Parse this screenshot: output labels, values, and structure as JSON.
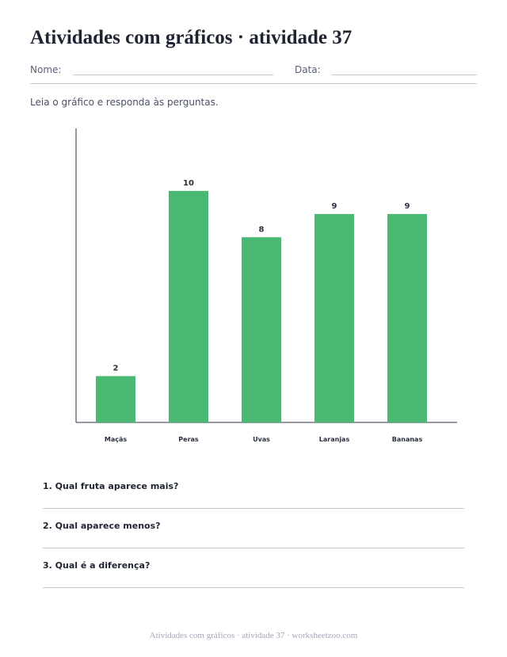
{
  "header": {
    "title": "Atividades com gráficos · atividade 37",
    "name_label": "Nome:",
    "date_label": "Data:"
  },
  "instructions": "Leia o gráfico e responda às perguntas.",
  "chart_data": {
    "type": "bar",
    "categories": [
      "Maçãs",
      "Peras",
      "Uvas",
      "Laranjas",
      "Bananas"
    ],
    "values": [
      2,
      10,
      8,
      9,
      9
    ],
    "ylim": [
      0,
      12.7
    ],
    "grid": false,
    "data_labels": true,
    "bar_color": "#49b873"
  },
  "questions": [
    "1. Qual fruta aparece mais?",
    "2. Qual aparece menos?",
    "3. Qual é a diferença?"
  ],
  "footer": "Atividades com gráficos · atividade 37 · worksheetzoo.com"
}
